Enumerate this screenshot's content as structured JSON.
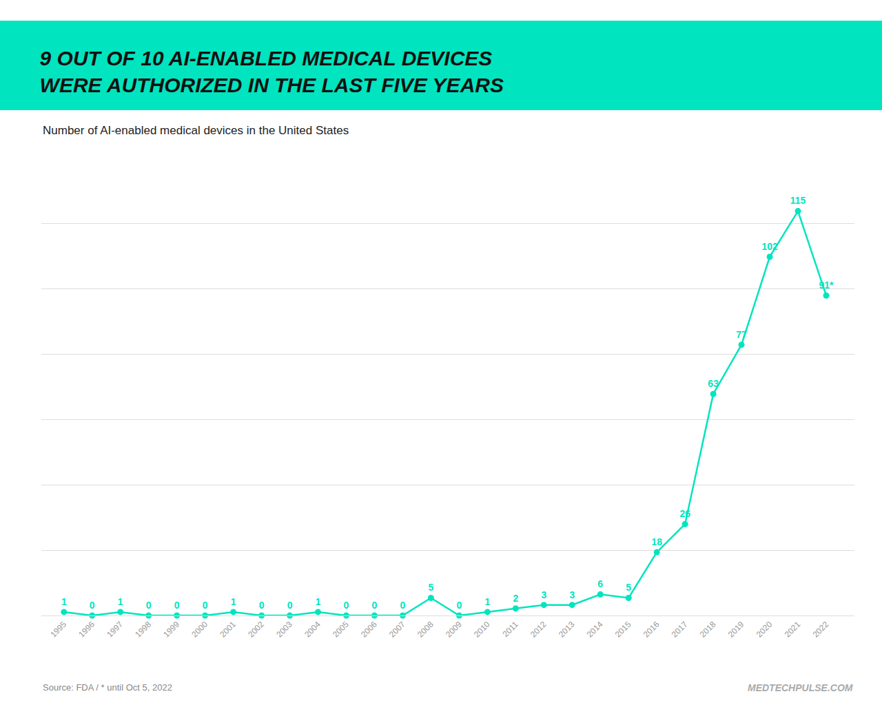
{
  "chart_data": {
    "type": "line",
    "title": "9 OUT OF 10 AI-ENABLED MEDICAL DEVICES\nWERE AUTHORIZED IN THE LAST FIVE YEARS",
    "subtitle": "Number of AI-enabled medical devices in the United States",
    "annotations": [
      "Source: FDA / * until Oct 5, 2022",
      "MEDTECHPULSE.COM"
    ],
    "x": [
      1995,
      1996,
      1997,
      1998,
      1999,
      2000,
      2001,
      2002,
      2003,
      2004,
      2005,
      2006,
      2007,
      2008,
      2009,
      2010,
      2011,
      2012,
      2013,
      2014,
      2015,
      2016,
      2017,
      2018,
      2019,
      2020,
      2021,
      2022
    ],
    "values": [
      1,
      0,
      1,
      0,
      0,
      0,
      1,
      0,
      0,
      1,
      0,
      0,
      0,
      5,
      0,
      1,
      2,
      3,
      3,
      6,
      5,
      18,
      26,
      63,
      77,
      102,
      115,
      91
    ],
    "value_labels": [
      "1",
      "0",
      "1",
      "0",
      "0",
      "0",
      "1",
      "0",
      "0",
      "1",
      "0",
      "0",
      "0",
      "5",
      "0",
      "1",
      "2",
      "3",
      "3",
      "6",
      "5",
      "18",
      "26",
      "63",
      "77",
      "102",
      "115",
      "91*"
    ],
    "color": "#00e5bf",
    "marker": "circle",
    "xlim": [
      1994.2,
      2023.0
    ],
    "xticks": [
      1995,
      1996,
      1997,
      1998,
      1999,
      2000,
      2001,
      2002,
      2003,
      2004,
      2005,
      2006,
      2007,
      2008,
      2009,
      2010,
      2011,
      2012,
      2013,
      2014,
      2015,
      2016,
      2017,
      2018,
      2019,
      2020,
      2021,
      2022
    ],
    "ylim": [
      0,
      130
    ],
    "yticks": [
      0,
      18.571428571428573,
      37.142857142857146,
      55.714285714285715,
      74.28571428571429,
      92.85714285714286,
      111.42857142857143,
      130
    ],
    "grid": true,
    "data_labels": true,
    "tick_labels": "x"
  }
}
